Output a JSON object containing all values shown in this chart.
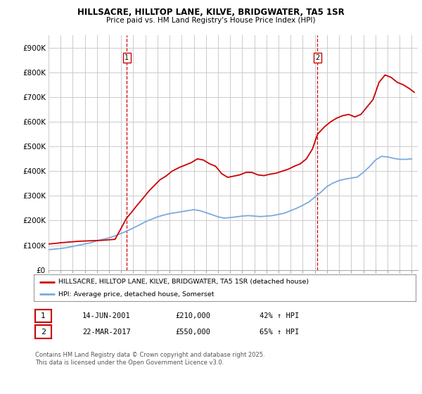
{
  "title": "HILLSACRE, HILLTOP LANE, KILVE, BRIDGWATER, TA5 1SR",
  "subtitle": "Price paid vs. HM Land Registry's House Price Index (HPI)",
  "red_label": "HILLSACRE, HILLTOP LANE, KILVE, BRIDGWATER, TA5 1SR (detached house)",
  "blue_label": "HPI: Average price, detached house, Somerset",
  "annotation1": {
    "num": "1",
    "date": "14-JUN-2001",
    "price": "£210,000",
    "pct": "42% ↑ HPI",
    "x_year": 2001.45
  },
  "annotation2": {
    "num": "2",
    "date": "22-MAR-2017",
    "price": "£550,000",
    "pct": "65% ↑ HPI",
    "x_year": 2017.22
  },
  "footer": "Contains HM Land Registry data © Crown copyright and database right 2025.\nThis data is licensed under the Open Government Licence v3.0.",
  "ylim": [
    0,
    950000
  ],
  "yticks": [
    0,
    100000,
    200000,
    300000,
    400000,
    500000,
    600000,
    700000,
    800000,
    900000
  ],
  "ytick_labels": [
    "£0",
    "£100K",
    "£200K",
    "£300K",
    "£400K",
    "£500K",
    "£600K",
    "£700K",
    "£800K",
    "£900K"
  ],
  "background_color": "#ffffff",
  "grid_color": "#cccccc",
  "red_color": "#cc0000",
  "blue_color": "#7aaadd",
  "red_years": [
    1995,
    1995.5,
    1996,
    1996.5,
    1997,
    1997.5,
    1998,
    1998.5,
    1999,
    1999.5,
    2000,
    2000.5,
    2001.45,
    2001.8,
    2002.2,
    2002.8,
    2003.3,
    2003.8,
    2004.2,
    2004.7,
    2005.2,
    2005.8,
    2006.3,
    2006.8,
    2007.3,
    2007.8,
    2008.3,
    2008.8,
    2009.3,
    2009.8,
    2010.3,
    2010.8,
    2011.3,
    2011.8,
    2012.3,
    2012.8,
    2013.3,
    2013.8,
    2014.3,
    2014.8,
    2015.3,
    2015.8,
    2016.3,
    2016.8,
    2017.22,
    2017.8,
    2018.3,
    2018.8,
    2019.3,
    2019.8,
    2020.3,
    2020.8,
    2021.3,
    2021.8,
    2022.3,
    2022.8,
    2023.3,
    2023.8,
    2024.3,
    2024.8,
    2025.2
  ],
  "red_values": [
    105000,
    107000,
    110000,
    112000,
    114000,
    116000,
    117000,
    118000,
    119000,
    120000,
    122000,
    124000,
    210000,
    230000,
    255000,
    290000,
    320000,
    345000,
    365000,
    380000,
    400000,
    415000,
    425000,
    435000,
    450000,
    445000,
    430000,
    420000,
    390000,
    375000,
    380000,
    385000,
    395000,
    395000,
    385000,
    382000,
    388000,
    392000,
    400000,
    408000,
    420000,
    430000,
    450000,
    490000,
    550000,
    580000,
    600000,
    615000,
    625000,
    630000,
    620000,
    630000,
    660000,
    690000,
    760000,
    790000,
    780000,
    760000,
    750000,
    735000,
    720000
  ],
  "blue_years": [
    1995,
    1995.5,
    1996,
    1996.5,
    1997,
    1997.5,
    1998,
    1998.5,
    1999,
    1999.5,
    2000,
    2000.5,
    2001,
    2001.5,
    2002,
    2002.5,
    2003,
    2003.5,
    2004,
    2004.5,
    2005,
    2005.5,
    2006,
    2006.5,
    2007,
    2007.5,
    2008,
    2008.5,
    2009,
    2009.5,
    2010,
    2010.5,
    2011,
    2011.5,
    2012,
    2012.5,
    2013,
    2013.5,
    2014,
    2014.5,
    2015,
    2015.5,
    2016,
    2016.5,
    2017,
    2017.5,
    2018,
    2018.5,
    2019,
    2019.5,
    2020,
    2020.5,
    2021,
    2021.5,
    2022,
    2022.5,
    2023,
    2023.5,
    2024,
    2024.5,
    2025
  ],
  "blue_values": [
    82000,
    84000,
    87000,
    90000,
    95000,
    100000,
    105000,
    110000,
    118000,
    124000,
    130000,
    138000,
    148000,
    158000,
    170000,
    182000,
    195000,
    205000,
    215000,
    222000,
    228000,
    232000,
    236000,
    240000,
    244000,
    240000,
    232000,
    224000,
    215000,
    210000,
    212000,
    215000,
    218000,
    220000,
    218000,
    216000,
    218000,
    220000,
    225000,
    230000,
    240000,
    250000,
    262000,
    275000,
    295000,
    315000,
    338000,
    352000,
    362000,
    368000,
    372000,
    376000,
    395000,
    418000,
    445000,
    460000,
    458000,
    452000,
    448000,
    448000,
    450000
  ],
  "xmin": 1995,
  "xmax": 2025.5
}
